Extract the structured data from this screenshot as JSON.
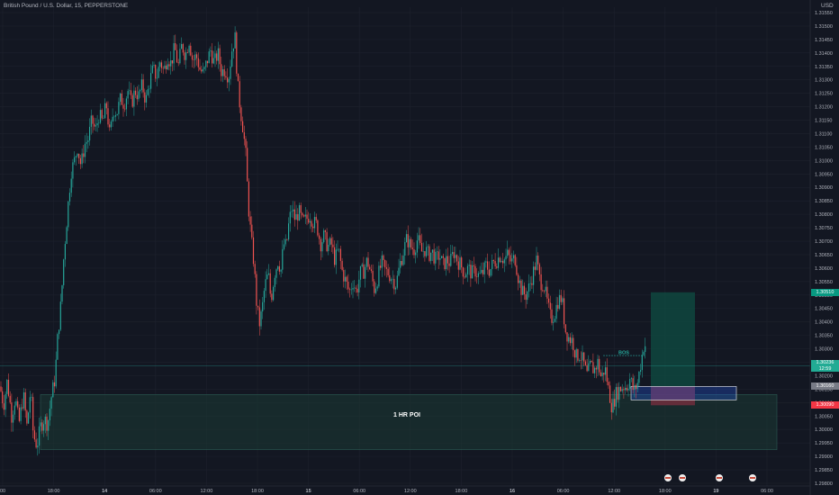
{
  "header": {
    "symbol": "British Pound / U.S. Dollar, 15, PEPPERSTONE",
    "currency": "USD"
  },
  "price_tags": {
    "target": {
      "value": "1.30510",
      "color": "#089981"
    },
    "current": {
      "value": "1.30236",
      "sub": "12:59",
      "color": "#22ab94"
    },
    "entry": {
      "value": "1.30160",
      "color": "#787b86"
    },
    "stop": {
      "value": "1.30090",
      "color": "#f23645"
    }
  },
  "annotations": {
    "poi_label": "1 HR POI",
    "bos_label": "BOS"
  },
  "colors": {
    "background": "#131722",
    "up": "#26a69a",
    "down": "#ef5350",
    "grid": "#1e222d",
    "poi_fill": "#1c3a35",
    "entry_box": "#2962ff",
    "target_zone": "#0f4d43",
    "stop_zone": "#6b2d3c"
  },
  "chart_data": {
    "type": "candlestick",
    "title": "British Pound / U.S. Dollar, 15, PEPPERSTONE",
    "y_axis": {
      "ticks": [
        "1.31550",
        "1.31500",
        "1.31450",
        "1.31400",
        "1.31350",
        "1.31300",
        "1.31250",
        "1.31200",
        "1.31150",
        "1.31100",
        "1.31050",
        "1.31000",
        "1.30950",
        "1.30900",
        "1.30850",
        "1.30800",
        "1.30750",
        "1.30700",
        "1.30650",
        "1.30600",
        "1.30550",
        "1.30500",
        "1.30450",
        "1.30400",
        "1.30350",
        "1.30300",
        "1.30250",
        "1.30200",
        "1.30150",
        "1.30100",
        "1.30050",
        "1.30000",
        "1.29950",
        "1.29900",
        "1.29850",
        "1.29800"
      ],
      "range": [
        1.2979,
        1.3157
      ]
    },
    "x_axis": {
      "ticks": [
        "00",
        "18:00",
        "14",
        "06:00",
        "12:00",
        "18:00",
        "15",
        "06:00",
        "12:00",
        "18:00",
        "16",
        "06:00",
        "12:00",
        "18:00",
        "19",
        "06:00"
      ]
    },
    "price_path": [
      [
        0,
        1.3016
      ],
      [
        4,
        1.3009
      ],
      [
        8,
        1.3018
      ],
      [
        13,
        1.3005
      ],
      [
        17,
        1.3012
      ],
      [
        21,
        1.3002
      ],
      [
        26,
        1.3013
      ],
      [
        30,
        1.3001
      ],
      [
        34,
        1.3015
      ],
      [
        37,
        1.2998
      ],
      [
        41,
        1.2994
      ],
      [
        45,
        1.3001
      ],
      [
        49,
        1.3004
      ],
      [
        53,
        1.3002
      ],
      [
        57,
        1.3012
      ],
      [
        61,
        1.3019
      ],
      [
        64,
        1.3034
      ],
      [
        68,
        1.3048
      ],
      [
        71,
        1.3065
      ],
      [
        75,
        1.3081
      ],
      [
        79,
        1.3096
      ],
      [
        82,
        1.3099
      ],
      [
        86,
        1.3105
      ],
      [
        90,
        1.3098
      ],
      [
        94,
        1.3106
      ],
      [
        98,
        1.3108
      ],
      [
        102,
        1.3115
      ],
      [
        106,
        1.3111
      ],
      [
        110,
        1.3117
      ],
      [
        114,
        1.3114
      ],
      [
        118,
        1.3121
      ],
      [
        122,
        1.3109
      ],
      [
        126,
        1.3119
      ],
      [
        130,
        1.3118
      ],
      [
        134,
        1.3123
      ],
      [
        138,
        1.3121
      ],
      [
        142,
        1.3126
      ],
      [
        146,
        1.3121
      ],
      [
        150,
        1.3126
      ],
      [
        154,
        1.3124
      ],
      [
        158,
        1.3128
      ],
      [
        162,
        1.3122
      ],
      [
        166,
        1.3129
      ],
      [
        170,
        1.3134
      ],
      [
        174,
        1.3131
      ],
      [
        178,
        1.3137
      ],
      [
        182,
        1.3133
      ],
      [
        186,
        1.3139
      ],
      [
        190,
        1.3136
      ],
      [
        194,
        1.3142
      ],
      [
        198,
        1.3135
      ],
      [
        202,
        1.3143
      ],
      [
        206,
        1.3139
      ],
      [
        210,
        1.3145
      ],
      [
        214,
        1.3137
      ],
      [
        218,
        1.3139
      ],
      [
        222,
        1.3134
      ],
      [
        226,
        1.3132
      ],
      [
        230,
        1.3137
      ],
      [
        234,
        1.3141
      ],
      [
        238,
        1.3136
      ],
      [
        242,
        1.314
      ],
      [
        246,
        1.3133
      ],
      [
        250,
        1.3134
      ],
      [
        254,
        1.3131
      ],
      [
        258,
        1.3142
      ],
      [
        261,
        1.3146
      ],
      [
        264,
        1.3128
      ],
      [
        267,
        1.3119
      ],
      [
        270,
        1.3112
      ],
      [
        273,
        1.3102
      ],
      [
        276,
        1.3083
      ],
      [
        279,
        1.3071
      ],
      [
        282,
        1.3062
      ],
      [
        285,
        1.3047
      ],
      [
        288,
        1.3039
      ],
      [
        291,
        1.3044
      ],
      [
        294,
        1.3053
      ],
      [
        298,
        1.3058
      ],
      [
        301,
        1.3048
      ],
      [
        305,
        1.3058
      ],
      [
        309,
        1.3063
      ],
      [
        312,
        1.3059
      ],
      [
        315,
        1.3069
      ],
      [
        318,
        1.3068
      ],
      [
        321,
        1.3077
      ],
      [
        324,
        1.3082
      ],
      [
        328,
        1.3078
      ],
      [
        332,
        1.3081
      ],
      [
        336,
        1.3077
      ],
      [
        340,
        1.3078
      ],
      [
        344,
        1.308
      ],
      [
        348,
        1.3077
      ],
      [
        352,
        1.3076
      ],
      [
        356,
        1.3069
      ],
      [
        360,
        1.3072
      ],
      [
        364,
        1.3068
      ],
      [
        368,
        1.3069
      ],
      [
        372,
        1.3063
      ],
      [
        376,
        1.3067
      ],
      [
        380,
        1.3059
      ],
      [
        384,
        1.3055
      ],
      [
        388,
        1.3051
      ],
      [
        392,
        1.3055
      ],
      [
        396,
        1.3051
      ],
      [
        400,
        1.3058
      ],
      [
        404,
        1.3059
      ],
      [
        408,
        1.3063
      ],
      [
        412,
        1.3058
      ],
      [
        416,
        1.3052
      ],
      [
        420,
        1.3057
      ],
      [
        424,
        1.3062
      ],
      [
        428,
        1.3059
      ],
      [
        432,
        1.3058
      ],
      [
        436,
        1.3056
      ],
      [
        440,
        1.3054
      ],
      [
        444,
        1.3061
      ],
      [
        448,
        1.3066
      ],
      [
        452,
        1.3071
      ],
      [
        456,
        1.3068
      ],
      [
        460,
        1.3067
      ],
      [
        464,
        1.3071
      ],
      [
        468,
        1.3066
      ],
      [
        472,
        1.3067
      ],
      [
        476,
        1.3065
      ],
      [
        480,
        1.3066
      ],
      [
        484,
        1.3063
      ],
      [
        488,
        1.3065
      ],
      [
        492,
        1.3061
      ],
      [
        496,
        1.3063
      ],
      [
        500,
        1.3062
      ],
      [
        504,
        1.3066
      ],
      [
        508,
        1.3063
      ],
      [
        512,
        1.3061
      ],
      [
        516,
        1.3058
      ],
      [
        520,
        1.306
      ],
      [
        524,
        1.3058
      ],
      [
        528,
        1.3059
      ],
      [
        532,
        1.3057
      ],
      [
        536,
        1.3058
      ],
      [
        540,
        1.3061
      ],
      [
        544,
        1.3059
      ],
      [
        548,
        1.3062
      ],
      [
        552,
        1.3063
      ],
      [
        556,
        1.3065
      ],
      [
        560,
        1.3063
      ],
      [
        564,
        1.3065
      ],
      [
        568,
        1.3062
      ],
      [
        572,
        1.3064
      ],
      [
        576,
        1.3056
      ],
      [
        580,
        1.3051
      ],
      [
        584,
        1.305
      ],
      [
        588,
        1.3053
      ],
      [
        592,
        1.3058
      ],
      [
        596,
        1.3063
      ],
      [
        600,
        1.3055
      ],
      [
        604,
        1.3054
      ],
      [
        608,
        1.3047
      ],
      [
        612,
        1.3041
      ],
      [
        616,
        1.3043
      ],
      [
        620,
        1.3048
      ],
      [
        624,
        1.3049
      ],
      [
        628,
        1.3037
      ],
      [
        632,
        1.3034
      ],
      [
        636,
        1.3033
      ],
      [
        640,
        1.3027
      ],
      [
        644,
        1.3028
      ],
      [
        648,
        1.3025
      ],
      [
        652,
        1.302
      ],
      [
        656,
        1.3024
      ],
      [
        660,
        1.3022
      ],
      [
        664,
        1.3025
      ],
      [
        668,
        1.3019
      ],
      [
        672,
        1.3023
      ],
      [
        676,
        1.3015
      ],
      [
        680,
        1.3008
      ],
      [
        684,
        1.3013
      ],
      [
        688,
        1.3015
      ],
      [
        692,
        1.3016
      ],
      [
        696,
        1.3016
      ],
      [
        700,
        1.3019
      ],
      [
        704,
        1.3014
      ],
      [
        708,
        1.3017
      ],
      [
        712,
        1.3025
      ],
      [
        716,
        1.3033
      ],
      [
        720,
        1.3024
      ]
    ],
    "zones": {
      "poi": {
        "y_top": 1.3013,
        "y_bottom": 1.29925
      },
      "target": {
        "y_top": 1.3051,
        "y_bottom": 1.3016
      },
      "stop": {
        "y_top": 1.3016,
        "y_bottom": 1.3009
      },
      "entry_box": {
        "y_top": 1.3016,
        "y_bottom": 1.3011
      },
      "bos_level": 1.30275,
      "current_price": 1.30236
    },
    "grid": true
  }
}
